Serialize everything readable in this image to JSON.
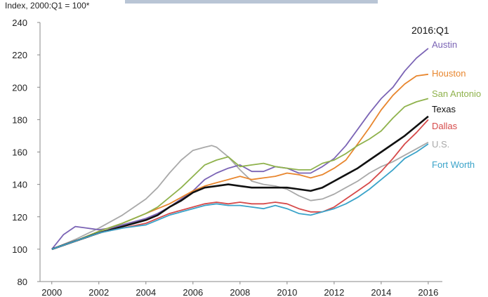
{
  "chart_data": {
    "type": "line",
    "subtitle": "Index, 2000:Q1 = 100*",
    "corner_label": "2016:Q1",
    "xlim": [
      1999.5,
      2016.6
    ],
    "ylim": [
      80,
      240
    ],
    "xticks": [
      2000,
      2002,
      2004,
      2006,
      2008,
      2010,
      2012,
      2014,
      2016
    ],
    "yticks": [
      80,
      100,
      120,
      140,
      160,
      180,
      200,
      220,
      240
    ],
    "grid": false,
    "series": [
      {
        "name": "U.S.",
        "color": "#a9a9a9",
        "x": [
          2000,
          2001,
          2002,
          2003,
          2004,
          2004.5,
          2005,
          2005.5,
          2006,
          2006.5,
          2006.8,
          2007,
          2007.5,
          2008,
          2008.5,
          2009,
          2009.5,
          2010,
          2010.5,
          2011,
          2011.5,
          2012,
          2012.5,
          2013,
          2013.5,
          2014,
          2014.5,
          2015,
          2015.5,
          2016
        ],
        "y": [
          100,
          106,
          113,
          121,
          131,
          138,
          147,
          155,
          161,
          163,
          164,
          163,
          157,
          149,
          142,
          140,
          139,
          137,
          133,
          130,
          131,
          134,
          138,
          142,
          147,
          151,
          154,
          158,
          162,
          166
        ]
      },
      {
        "name": "Austin",
        "color": "#7b64b5",
        "x": [
          2000,
          2000.5,
          2001,
          2001.5,
          2002,
          2002.5,
          2003,
          2003.5,
          2004,
          2004.5,
          2005,
          2005.5,
          2006,
          2006.5,
          2007,
          2007.5,
          2008,
          2008.5,
          2009,
          2009.5,
          2010,
          2010.5,
          2011,
          2011.5,
          2012,
          2012.5,
          2013,
          2013.5,
          2014,
          2014.5,
          2015,
          2015.5,
          2016
        ],
        "y": [
          100,
          109,
          114,
          113,
          112,
          113,
          115,
          117,
          119,
          122,
          126,
          131,
          136,
          143,
          147,
          150,
          152,
          148,
          148,
          151,
          150,
          147,
          147,
          151,
          156,
          164,
          174,
          184,
          193,
          200,
          210,
          218,
          224
        ]
      },
      {
        "name": "Houston",
        "color": "#e8862e",
        "x": [
          2000,
          2001,
          2002,
          2003,
          2004,
          2004.5,
          2005,
          2005.5,
          2006,
          2006.5,
          2007,
          2007.5,
          2008,
          2008.5,
          2009,
          2009.5,
          2010,
          2010.5,
          2011,
          2011.5,
          2012,
          2012.5,
          2013,
          2013.5,
          2014,
          2014.5,
          2015,
          2015.5,
          2016
        ],
        "y": [
          100,
          105,
          111,
          116,
          122,
          125,
          128,
          132,
          136,
          139,
          141,
          143,
          145,
          143,
          144,
          145,
          147,
          146,
          144,
          146,
          150,
          155,
          165,
          175,
          186,
          195,
          202,
          207,
          208
        ]
      },
      {
        "name": "San Antonio",
        "color": "#8fb24c",
        "x": [
          2000,
          2001,
          2002,
          2003,
          2004,
          2004.5,
          2005,
          2005.5,
          2006,
          2006.5,
          2007,
          2007.5,
          2008,
          2008.5,
          2009,
          2009.5,
          2010,
          2010.5,
          2011,
          2011.5,
          2012,
          2012.5,
          2013,
          2013.5,
          2014,
          2014.5,
          2015,
          2015.5,
          2016
        ],
        "y": [
          100,
          105,
          111,
          116,
          122,
          126,
          132,
          138,
          145,
          152,
          155,
          157,
          151,
          152,
          153,
          151,
          150,
          149,
          149,
          153,
          155,
          159,
          164,
          168,
          173,
          181,
          188,
          191,
          193
        ]
      },
      {
        "name": "Texas",
        "color": "#111111",
        "x": [
          2000,
          2001,
          2002,
          2003,
          2004,
          2004.5,
          2005,
          2005.5,
          2006,
          2006.5,
          2007,
          2007.5,
          2008,
          2008.5,
          2009,
          2009.5,
          2010,
          2010.5,
          2011,
          2011.5,
          2012,
          2012.5,
          2013,
          2013.5,
          2014,
          2014.5,
          2015,
          2015.5,
          2016
        ],
        "y": [
          100,
          105,
          110,
          114,
          118,
          121,
          126,
          130,
          135,
          138,
          139,
          140,
          139,
          138,
          138,
          138,
          138,
          137,
          136,
          138,
          142,
          146,
          150,
          155,
          160,
          165,
          170,
          176,
          182
        ]
      },
      {
        "name": "Dallas",
        "color": "#d64a4a",
        "x": [
          2000,
          2001,
          2002,
          2003,
          2004,
          2004.5,
          2005,
          2005.5,
          2006,
          2006.5,
          2007,
          2007.5,
          2008,
          2008.5,
          2009,
          2009.5,
          2010,
          2010.5,
          2011,
          2011.5,
          2012,
          2012.5,
          2013,
          2013.5,
          2014,
          2014.5,
          2015,
          2015.5,
          2016
        ],
        "y": [
          100,
          105,
          110,
          113,
          116,
          119,
          122,
          124,
          126,
          128,
          129,
          128,
          129,
          128,
          128,
          129,
          128,
          125,
          123,
          123,
          126,
          131,
          136,
          141,
          148,
          156,
          165,
          172,
          180
        ]
      },
      {
        "name": "Fort Worth",
        "color": "#3aa3c9",
        "x": [
          2000,
          2001,
          2002,
          2003,
          2004,
          2004.5,
          2005,
          2005.5,
          2006,
          2006.5,
          2007,
          2007.5,
          2008,
          2008.5,
          2009,
          2009.5,
          2010,
          2010.5,
          2011,
          2011.5,
          2012,
          2012.5,
          2013,
          2013.5,
          2014,
          2014.5,
          2015,
          2015.5,
          2016
        ],
        "y": [
          100,
          105,
          110,
          113,
          115,
          118,
          121,
          123,
          125,
          127,
          128,
          127,
          127,
          126,
          125,
          127,
          125,
          122,
          121,
          123,
          125,
          128,
          132,
          137,
          143,
          149,
          156,
          160,
          165
        ]
      }
    ]
  }
}
